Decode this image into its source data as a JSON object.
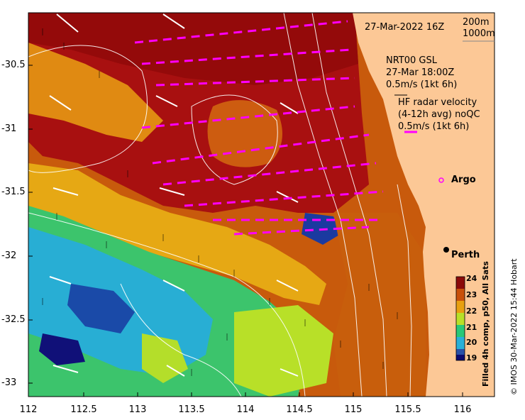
{
  "header": {
    "date_time": "27-Mar-2022 16Z",
    "contour_legend_1": "200m",
    "contour_legend_2": "1000m"
  },
  "legend": {
    "gsl_line1": "NRT00 GSL",
    "gsl_line2": "27-Mar 18:00Z",
    "gsl_line3": "0.5m/s (1kt 6h)",
    "hf_line1": "HF radar velocity",
    "hf_line2": "(4-12h avg) noQC",
    "hf_line3": "0.5m/s (1kt 6h)"
  },
  "places": {
    "argo": "Argo",
    "perth": "Perth"
  },
  "axes": {
    "x_ticks": [
      "112",
      "112.5",
      "113",
      "113.5",
      "114",
      "114.5",
      "115",
      "115.5",
      "116"
    ],
    "y_ticks": [
      "-30.5",
      "-31",
      "-31.5",
      "-32",
      "-32.5",
      "-33"
    ]
  },
  "colorbar": {
    "title": "Filled 4h comp, p50, All Sats",
    "ticks": [
      "24",
      "23",
      "22",
      "21",
      "20",
      "19"
    ],
    "colors": [
      "#8b0a0a",
      "#c8500a",
      "#e8a010",
      "#b8e028",
      "#28c878",
      "#28b0d8",
      "#2850a8",
      "#0a0a70"
    ]
  },
  "credit": "© IMOS 30-Mar-2022 15:44 Hobart",
  "colors": {
    "land": "#fcc896",
    "hf_vectors": "#ff00ff",
    "gsl_vectors": "#ffffff",
    "contours": "#ffffff"
  }
}
